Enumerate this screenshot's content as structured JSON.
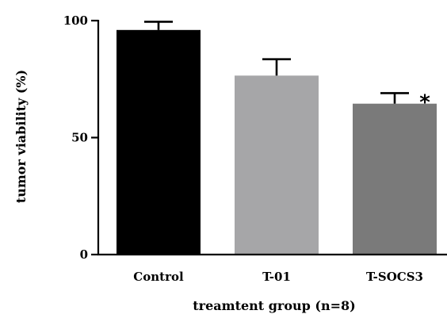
{
  "chart_data": {
    "type": "bar",
    "categories": [
      "Control",
      "T-01",
      "T-SOCS3"
    ],
    "values": [
      96,
      76.5,
      64.5
    ],
    "error_upper": [
      99.5,
      83.5,
      69
    ],
    "bar_colors": [
      "#000000",
      "#a6a6a8",
      "#7a7a7a"
    ],
    "significance": [
      "",
      "",
      "*"
    ],
    "xlabel": "treamtent group (n=8)",
    "ylabel": "tumor viability (%)",
    "ylim": [
      0,
      100
    ],
    "yticks": [
      0,
      50,
      100
    ],
    "grid": false,
    "legend": "none"
  }
}
